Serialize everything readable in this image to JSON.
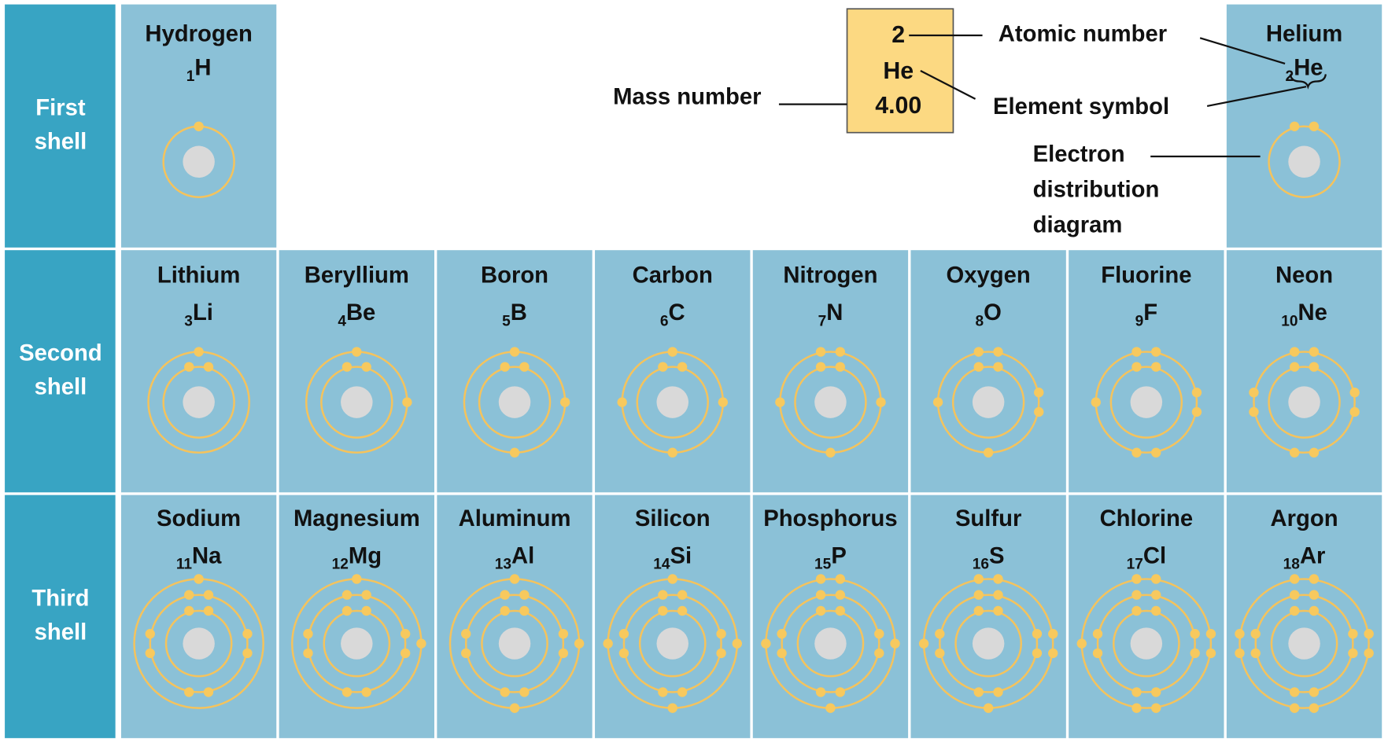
{
  "rows": [
    {
      "label": [
        "First",
        "shell"
      ],
      "elements": [
        {
          "name": "Hydrogen",
          "number": 1,
          "symbol": "H"
        },
        {
          "name": "Helium",
          "number": 2,
          "symbol": "He"
        }
      ]
    },
    {
      "label": [
        "Second",
        "shell"
      ],
      "elements": [
        {
          "name": "Lithium",
          "number": 3,
          "symbol": "Li"
        },
        {
          "name": "Beryllium",
          "number": 4,
          "symbol": "Be"
        },
        {
          "name": "Boron",
          "number": 5,
          "symbol": "B"
        },
        {
          "name": "Carbon",
          "number": 6,
          "symbol": "C"
        },
        {
          "name": "Nitrogen",
          "number": 7,
          "symbol": "N"
        },
        {
          "name": "Oxygen",
          "number": 8,
          "symbol": "O"
        },
        {
          "name": "Fluorine",
          "number": 9,
          "symbol": "F"
        },
        {
          "name": "Neon",
          "number": 10,
          "symbol": "Ne"
        }
      ]
    },
    {
      "label": [
        "Third",
        "shell"
      ],
      "elements": [
        {
          "name": "Sodium",
          "number": 11,
          "symbol": "Na"
        },
        {
          "name": "Magnesium",
          "number": 12,
          "symbol": "Mg"
        },
        {
          "name": "Aluminum",
          "number": 13,
          "symbol": "Al"
        },
        {
          "name": "Silicon",
          "number": 14,
          "symbol": "Si"
        },
        {
          "name": "Phosphorus",
          "number": 15,
          "symbol": "P"
        },
        {
          "name": "Sulfur",
          "number": 16,
          "symbol": "S"
        },
        {
          "name": "Chlorine",
          "number": 17,
          "symbol": "Cl"
        },
        {
          "name": "Argon",
          "number": 18,
          "symbol": "Ar"
        }
      ]
    }
  ],
  "key": {
    "atomic_number": "2",
    "symbol": "He",
    "mass": "4.00",
    "labels": {
      "atomic_number": "Atomic number",
      "element_symbol": "Element symbol",
      "mass_number": "Mass number",
      "electron_diagram": [
        "Electron",
        "distribution",
        "diagram"
      ]
    }
  }
}
